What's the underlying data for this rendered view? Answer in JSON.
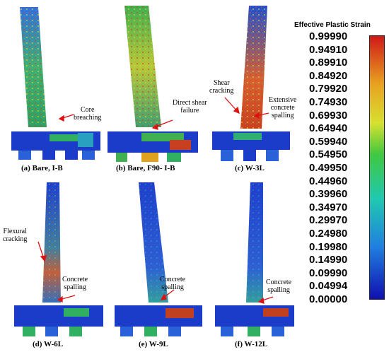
{
  "legend": {
    "title": "Effective Plastic Strain",
    "ticks": [
      "0.99990",
      "0.94910",
      "0.89910",
      "0.84920",
      "0.79920",
      "0.74930",
      "0.69930",
      "0.64940",
      "0.59940",
      "0.54950",
      "0.49950",
      "0.44960",
      "0.39960",
      "0.34970",
      "0.29970",
      "0.24980",
      "0.19980",
      "0.14990",
      "0.09990",
      "0.04994",
      "0.00000"
    ],
    "colors": {
      "top": "#d01818",
      "upper": "#e0a020",
      "mid_high": "#c8e030",
      "mid": "#30c040",
      "mid_low": "#20c0c0",
      "low": "#2060e0",
      "bottom": "#1010b0"
    }
  },
  "panels": [
    {
      "caption": "(a) Bare, I-B",
      "annotations": [
        "Core",
        "breaching"
      ]
    },
    {
      "caption": "(b) Bare, F90- I-B",
      "annotations": [
        "Direct shear",
        "failure"
      ]
    },
    {
      "caption": "(c) W-3L",
      "annotations": [
        "Shear",
        "cracking",
        "Extensive",
        "concrete",
        "spalling"
      ]
    },
    {
      "caption": "(d) W-6L",
      "annotations": [
        "Flexural",
        "cracking",
        "Concrete",
        "spalling"
      ]
    },
    {
      "caption": "(e) W-9L",
      "annotations": [
        "Concrete",
        "spalling"
      ]
    },
    {
      "caption": "(f) W-12L",
      "annotations": [
        "Concrete",
        "spalling"
      ]
    }
  ]
}
